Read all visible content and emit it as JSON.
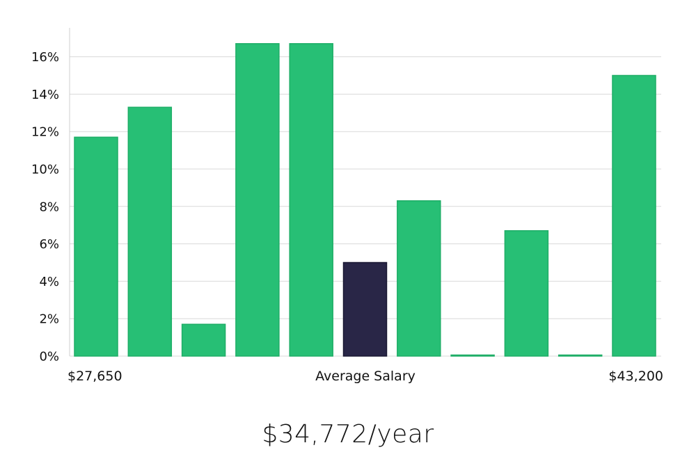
{
  "chart_data": {
    "type": "bar",
    "x_axis": {
      "left_label": "$27,650",
      "center_label": "Average Salary",
      "right_label": "$43,200"
    },
    "y_ticks": [
      "0%",
      "2%",
      "4%",
      "6%",
      "8%",
      "10%",
      "12%",
      "14%",
      "16%"
    ],
    "ylim": [
      0,
      17.5
    ],
    "grid": true,
    "values": [
      11.7,
      13.3,
      1.7,
      16.7,
      16.7,
      5.0,
      8.3,
      0.0,
      6.7,
      0.0,
      15.0
    ],
    "highlight_index": 5,
    "colors": {
      "bar": "#27bf75",
      "bar_stroke": "#1fae67",
      "highlight": "#292647",
      "grid": "#d9d9d9",
      "axis": "#cfcfcf"
    }
  },
  "summary": {
    "average_salary": "$34,772/year"
  }
}
